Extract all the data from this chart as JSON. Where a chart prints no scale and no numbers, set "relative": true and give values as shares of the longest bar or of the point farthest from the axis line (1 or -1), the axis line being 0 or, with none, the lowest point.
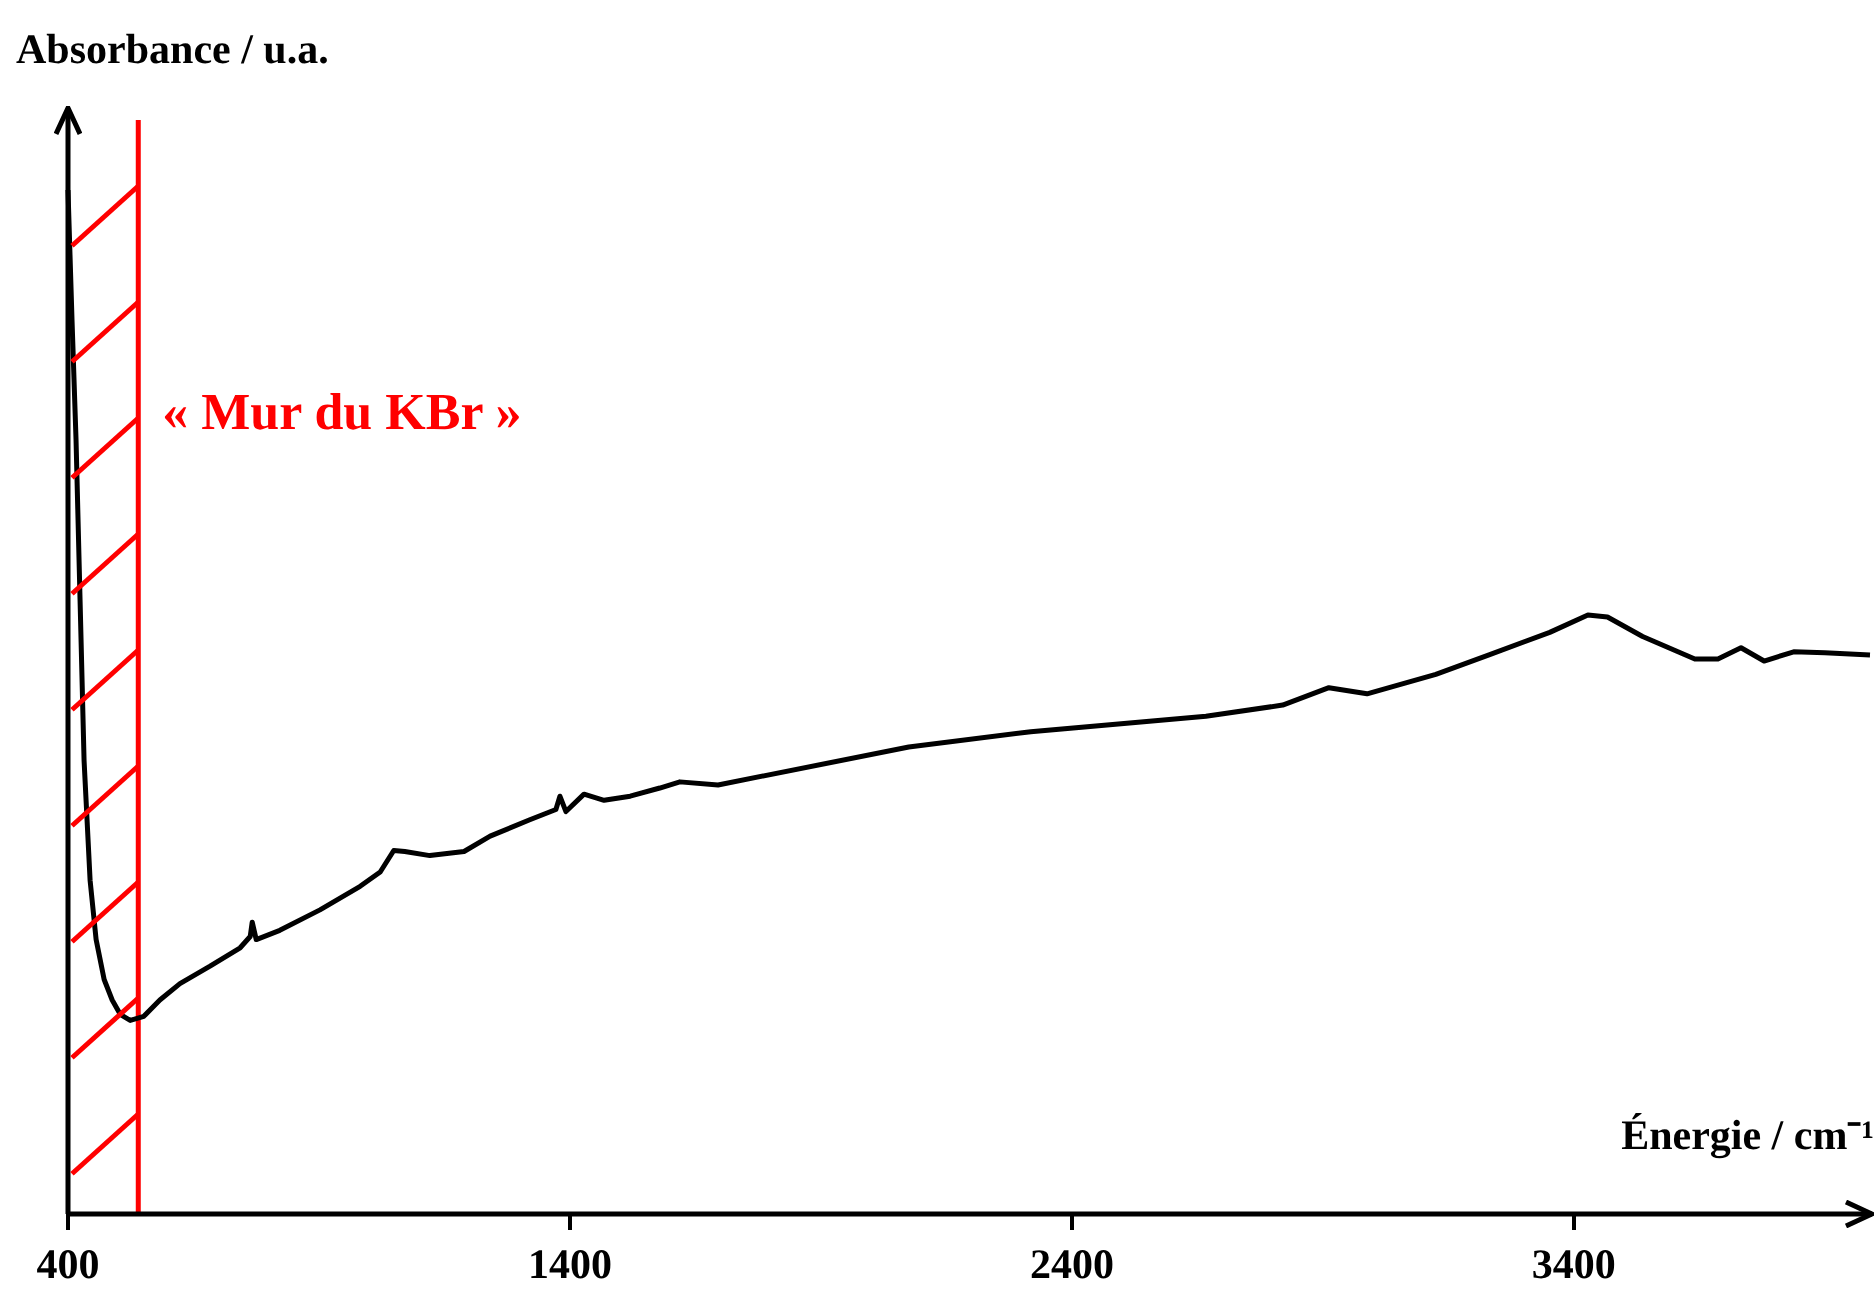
{
  "chart_data": {
    "type": "line",
    "relative": true,
    "ylabel": "Absorbance / u.a.",
    "xlabel": "Énergie / cm⁻¹",
    "xlim": [
      400,
      3990
    ],
    "xticks": [
      400,
      1400,
      2400,
      3400
    ],
    "grid": false,
    "legend": false,
    "marker": "none",
    "ref_lines": [
      {
        "axis": "x",
        "value": 540,
        "label": "« Mur du KBr »",
        "color": "#ff0000"
      }
    ],
    "series": [
      {
        "color": "#000000",
        "x": [
          400,
          408,
          416,
          424,
          432,
          444,
          456,
          472,
          488,
          504,
          524,
          551,
          583,
          623,
          683,
          743,
          763,
          767,
          775,
          822,
          902,
          982,
          1022,
          1049,
          1071,
          1121,
          1189,
          1241,
          1320,
          1372,
          1380,
          1392,
          1428,
          1468,
          1520,
          1579,
          1619,
          1695,
          2075,
          2318,
          2667,
          2820,
          2912,
          2988,
          3125,
          3231,
          3352,
          3428,
          3467,
          3537,
          3641,
          3687,
          3733,
          3779,
          3838,
          3900,
          3990
        ],
        "values": [
          1.0,
          0.873,
          0.756,
          0.6,
          0.443,
          0.326,
          0.268,
          0.229,
          0.209,
          0.195,
          0.189,
          0.193,
          0.209,
          0.225,
          0.242,
          0.26,
          0.271,
          0.285,
          0.268,
          0.277,
          0.297,
          0.32,
          0.334,
          0.355,
          0.354,
          0.35,
          0.354,
          0.369,
          0.385,
          0.395,
          0.408,
          0.393,
          0.41,
          0.404,
          0.408,
          0.416,
          0.422,
          0.419,
          0.456,
          0.471,
          0.486,
          0.497,
          0.514,
          0.508,
          0.527,
          0.546,
          0.568,
          0.585,
          0.583,
          0.564,
          0.542,
          0.542,
          0.553,
          0.54,
          0.549,
          0.548,
          0.546
        ]
      }
    ]
  }
}
